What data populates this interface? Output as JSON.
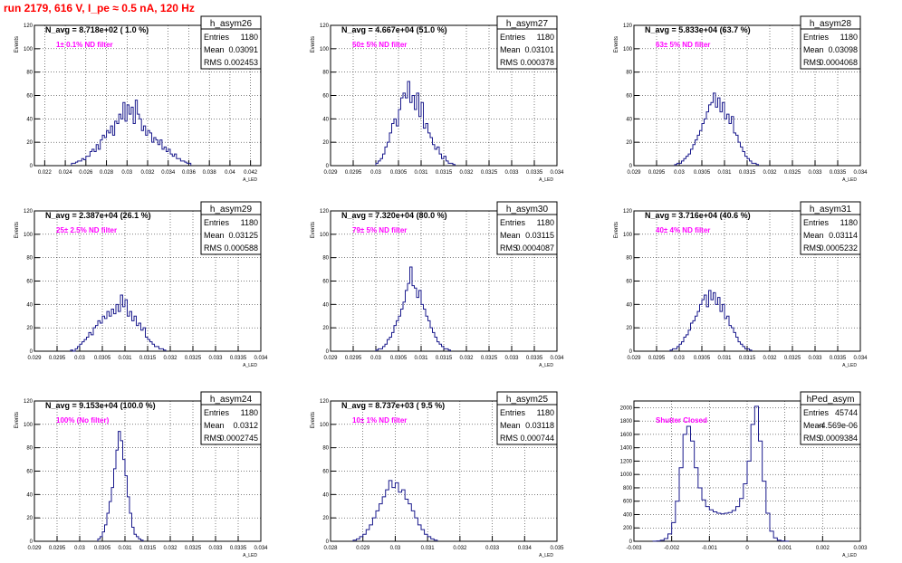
{
  "page_title": "run 2179,   616 V, I_pe ≈ 0.5 nA, 120 Hz",
  "colors": {
    "hist_line": "#1a1a8c",
    "annotation": "#ff00ff",
    "title": "#ff0000",
    "grid": "#000000"
  },
  "chart_data": [
    {
      "type": "histogram",
      "name": "h_asym26",
      "entries": "1180",
      "mean": "0.03091",
      "rms": "0.002453",
      "navg": "N_avg = 8.718e+02 ( 1.0 %)",
      "note": "1± 0.1% ND filter",
      "ylabel": "Events",
      "xlabel": "A_LED",
      "grid": true,
      "ylim": [
        0,
        120
      ],
      "yticks": [
        0,
        20,
        40,
        60,
        80,
        100,
        120
      ],
      "xticks": [
        0.022,
        0.024,
        0.026,
        0.028,
        0.03,
        0.032,
        0.034,
        0.036,
        0.038,
        0.04,
        0.042
      ],
      "xtick_labels": [
        "0.022",
        "0.024",
        "0.026",
        "0.028",
        "0.03",
        "0.032",
        "0.034",
        "0.036",
        "0.038",
        "0.04",
        "0.042"
      ],
      "xlim": [
        0.021,
        0.043
      ],
      "bins": {
        "start": 0.0246,
        "width": 0.0002,
        "values": [
          2,
          2,
          3,
          4,
          4,
          6,
          5,
          8,
          8,
          12,
          14,
          12,
          18,
          14,
          22,
          26,
          24,
          30,
          28,
          34,
          26,
          38,
          36,
          44,
          40,
          54,
          38,
          52,
          44,
          50,
          36,
          56,
          44,
          40,
          30,
          34,
          26,
          30,
          28,
          20,
          24,
          22,
          18,
          22,
          14,
          16,
          12,
          14,
          10,
          8,
          10,
          6,
          6,
          4,
          4,
          3,
          2,
          2
        ]
      }
    },
    {
      "type": "histogram",
      "name": "h_asym27",
      "entries": "1180",
      "mean": "0.03101",
      "rms": "0.000378",
      "navg": "N_avg = 4.667e+04 (51.0 %)",
      "note": "50± 5% ND filter",
      "ylabel": "Events",
      "xlabel": "A_LED",
      "grid": true,
      "ylim": [
        0,
        120
      ],
      "yticks": [
        0,
        20,
        40,
        60,
        80,
        100,
        120
      ],
      "xticks": [
        0.029,
        0.0295,
        0.03,
        0.0305,
        0.031,
        0.0315,
        0.032,
        0.0325,
        0.033,
        0.0335,
        0.034
      ],
      "xtick_labels": [
        "0.029",
        "0.0295",
        "0.03",
        "0.0305",
        "0.031",
        "0.0315",
        "0.032",
        "0.0325",
        "0.033",
        "0.0335",
        "0.034"
      ],
      "xlim": [
        0.029,
        0.034
      ],
      "bins": {
        "start": 0.03,
        "width": 5e-05,
        "values": [
          2,
          4,
          6,
          10,
          16,
          20,
          28,
          36,
          40,
          34,
          48,
          58,
          62,
          58,
          72,
          54,
          60,
          48,
          62,
          42,
          54,
          32,
          36,
          28,
          24,
          18,
          14,
          16,
          10,
          6,
          8,
          4,
          2,
          2,
          1
        ]
      }
    },
    {
      "type": "histogram",
      "name": "h_asym28",
      "entries": "1180",
      "mean": "0.03098",
      "rms": "0.0004068",
      "navg": "N_avg = 5.833e+04 (63.7 %)",
      "note": "63± 5% ND filter",
      "ylabel": "Events",
      "xlabel": "A_LED",
      "grid": true,
      "ylim": [
        0,
        120
      ],
      "yticks": [
        0,
        20,
        40,
        60,
        80,
        100,
        120
      ],
      "xticks": [
        0.029,
        0.0295,
        0.03,
        0.0305,
        0.031,
        0.0315,
        0.032,
        0.0325,
        0.033,
        0.0335,
        0.034
      ],
      "xtick_labels": [
        "0.029",
        "0.0295",
        "0.03",
        "0.0305",
        "0.031",
        "0.0315",
        "0.032",
        "0.0325",
        "0.033",
        "0.0335",
        "0.034"
      ],
      "xlim": [
        0.029,
        0.034
      ],
      "bins": {
        "start": 0.0299,
        "width": 5e-05,
        "values": [
          1,
          2,
          2,
          4,
          6,
          8,
          10,
          14,
          18,
          22,
          26,
          30,
          36,
          40,
          46,
          52,
          54,
          62,
          50,
          58,
          46,
          54,
          40,
          44,
          36,
          42,
          28,
          26,
          20,
          16,
          12,
          8,
          6,
          4,
          2,
          2,
          1
        ]
      }
    },
    {
      "type": "histogram",
      "name": "h_asym29",
      "entries": "1180",
      "mean": "0.03125",
      "rms": "0.000588",
      "navg": "N_avg = 2.387e+04 (26.1 %)",
      "note": "25± 2.5% ND filter",
      "ylabel": "Events",
      "xlabel": "A_LED",
      "grid": true,
      "ylim": [
        0,
        120
      ],
      "yticks": [
        0,
        20,
        40,
        60,
        80,
        100,
        120
      ],
      "xticks": [
        0.029,
        0.0295,
        0.03,
        0.0305,
        0.031,
        0.0315,
        0.032,
        0.0325,
        0.033,
        0.0335,
        0.034
      ],
      "xtick_labels": [
        "0.029",
        "0.0295",
        "0.03",
        "0.0305",
        "0.031",
        "0.0315",
        "0.032",
        "0.0325",
        "0.033",
        "0.0335",
        "0.034"
      ],
      "xlim": [
        0.029,
        0.034
      ],
      "bins": {
        "start": 0.0298,
        "width": 5e-05,
        "values": [
          1,
          0,
          2,
          4,
          6,
          8,
          10,
          12,
          16,
          14,
          20,
          22,
          26,
          24,
          30,
          28,
          34,
          30,
          36,
          32,
          40,
          34,
          48,
          38,
          44,
          30,
          34,
          26,
          30,
          22,
          24,
          18,
          20,
          12,
          10,
          8,
          6,
          4,
          4,
          2,
          2,
          1
        ]
      }
    },
    {
      "type": "histogram",
      "name": "h_asym30",
      "entries": "1180",
      "mean": "0.03115",
      "rms": "0.0004087",
      "navg": "N_avg = 7.320e+04 (80.0 %)",
      "note": "79± 5% ND filter",
      "ylabel": "Events",
      "xlabel": "A_LED",
      "grid": true,
      "ylim": [
        0,
        120
      ],
      "yticks": [
        0,
        20,
        40,
        60,
        80,
        100,
        120
      ],
      "xticks": [
        0.029,
        0.0295,
        0.03,
        0.0305,
        0.031,
        0.0315,
        0.032,
        0.0325,
        0.033,
        0.0335,
        0.034
      ],
      "xtick_labels": [
        "0.029",
        "0.0295",
        "0.03",
        "0.0305",
        "0.031",
        "0.0315",
        "0.032",
        "0.0325",
        "0.033",
        "0.0335",
        "0.034"
      ],
      "xlim": [
        0.029,
        0.034
      ],
      "bins": {
        "start": 0.03,
        "width": 5e-05,
        "values": [
          1,
          2,
          2,
          4,
          6,
          10,
          12,
          16,
          22,
          26,
          30,
          36,
          42,
          52,
          58,
          72,
          56,
          54,
          46,
          52,
          40,
          36,
          30,
          26,
          20,
          16,
          12,
          8,
          6,
          4,
          2,
          2,
          1
        ]
      }
    },
    {
      "type": "histogram",
      "name": "h_asym31",
      "entries": "1180",
      "mean": "0.03114",
      "rms": "0.0005232",
      "navg": "N_avg = 3.716e+04 (40.6 %)",
      "note": "40± 4% ND filter",
      "ylabel": "Events",
      "xlabel": "A_LED",
      "grid": true,
      "ylim": [
        0,
        120
      ],
      "yticks": [
        0,
        20,
        40,
        60,
        80,
        100,
        120
      ],
      "xticks": [
        0.029,
        0.0295,
        0.03,
        0.0305,
        0.031,
        0.0315,
        0.032,
        0.0325,
        0.033,
        0.0335,
        0.034
      ],
      "xtick_labels": [
        "0.029",
        "0.0295",
        "0.03",
        "0.0305",
        "0.031",
        "0.0315",
        "0.032",
        "0.0325",
        "0.033",
        "0.0335",
        "0.034"
      ],
      "xlim": [
        0.029,
        0.034
      ],
      "bins": {
        "start": 0.0298,
        "width": 5e-05,
        "values": [
          1,
          2,
          2,
          4,
          6,
          8,
          12,
          14,
          18,
          24,
          26,
          30,
          34,
          40,
          44,
          48,
          38,
          52,
          44,
          50,
          40,
          46,
          34,
          40,
          28,
          30,
          22,
          20,
          16,
          12,
          8,
          6,
          4,
          2,
          2,
          1
        ]
      }
    },
    {
      "type": "histogram",
      "name": "h_asym24",
      "entries": "1180",
      "mean": "0.0312",
      "rms": "0.0002745",
      "navg": "N_avg = 9.153e+04 (100.0 %)",
      "note": "100% (No filter)",
      "ylabel": "Events",
      "xlabel": "A_LED",
      "grid": true,
      "ylim": [
        0,
        120
      ],
      "yticks": [
        0,
        20,
        40,
        60,
        80,
        100,
        120
      ],
      "xticks": [
        0.029,
        0.0295,
        0.03,
        0.0305,
        0.031,
        0.0315,
        0.032,
        0.0325,
        0.033,
        0.0335,
        0.034
      ],
      "xtick_labels": [
        "0.029",
        "0.0295",
        "0.03",
        "0.0305",
        "0.031",
        "0.0315",
        "0.032",
        "0.0325",
        "0.033",
        "0.0335",
        "0.034"
      ],
      "xlim": [
        0.029,
        0.034
      ],
      "bins": {
        "start": 0.0304,
        "width": 5e-05,
        "values": [
          2,
          4,
          8,
          14,
          24,
          34,
          46,
          62,
          78,
          94,
          86,
          70,
          56,
          38,
          24,
          12,
          6,
          4,
          2,
          1
        ]
      }
    },
    {
      "type": "histogram",
      "name": "h_asym25",
      "entries": "1180",
      "mean": "0.03118",
      "rms": "0.000744",
      "navg": "N_avg = 8.737e+03 ( 9.5 %)",
      "note": "10± 1% ND filter",
      "ylabel": "Events",
      "xlabel": "A_LED",
      "grid": true,
      "ylim": [
        0,
        120
      ],
      "yticks": [
        0,
        20,
        40,
        60,
        80,
        100,
        120
      ],
      "xticks": [
        0.028,
        0.029,
        0.03,
        0.031,
        0.032,
        0.033,
        0.034,
        0.035
      ],
      "xtick_labels": [
        "0.028",
        "0.029",
        "0.03",
        "0.031",
        "0.032",
        "0.033",
        "0.034",
        "0.035"
      ],
      "xlim": [
        0.028,
        0.035
      ],
      "bins": {
        "start": 0.0287,
        "width": 0.0001,
        "values": [
          1,
          2,
          4,
          6,
          10,
          14,
          20,
          26,
          32,
          38,
          44,
          52,
          46,
          50,
          42,
          44,
          36,
          32,
          26,
          20,
          14,
          10,
          6,
          4,
          2,
          1
        ]
      }
    },
    {
      "type": "histogram",
      "name": "hPed_asym",
      "entries": "45744",
      "mean": "-4.569e-06",
      "rms": "0.0009384",
      "navg": "",
      "note": "Shutter Closed",
      "ylabel": "",
      "xlabel": "A_LED",
      "grid": true,
      "ylim": [
        0,
        2100
      ],
      "yticks": [
        0,
        200,
        400,
        600,
        800,
        1000,
        1200,
        1400,
        1600,
        1800,
        2000
      ],
      "xticks": [
        -0.003,
        -0.002,
        -0.001,
        0,
        0.001,
        0.002,
        0.003
      ],
      "xtick_labels": [
        "-0.003",
        "-0.002",
        "-0.001",
        "0",
        "0.001",
        "0.002",
        "0.003"
      ],
      "xlim": [
        -0.003,
        0.003
      ],
      "bins": {
        "start": -0.0025,
        "width": 0.0001,
        "values": [
          2,
          5,
          15,
          40,
          110,
          280,
          600,
          1100,
          1600,
          1720,
          1500,
          1100,
          800,
          620,
          520,
          470,
          440,
          420,
          410,
          420,
          430,
          460,
          520,
          640,
          860,
          1200,
          1750,
          2020,
          1500,
          900,
          420,
          150,
          50,
          15,
          5,
          2
        ]
      }
    }
  ]
}
